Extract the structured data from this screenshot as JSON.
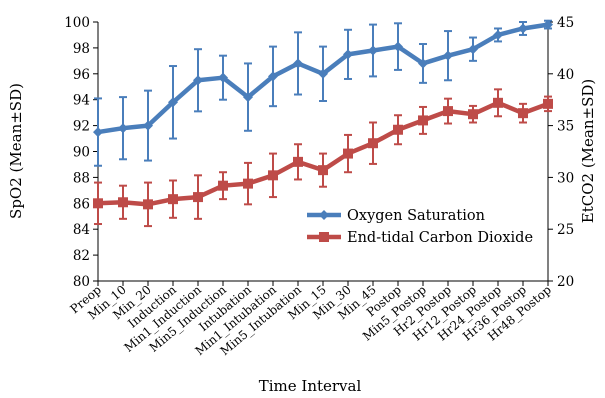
{
  "chart_data": {
    "type": "line",
    "xlabel": "Time Interval",
    "ylabel_left": "SpO2  (Mean±SD)",
    "ylabel_right": "EtCO2  (Mean±SD)",
    "ylim_left": [
      80,
      100
    ],
    "ylim_right": [
      20,
      45
    ],
    "yticks_left": [
      "80",
      "82",
      "84",
      "86",
      "88",
      "90",
      "92",
      "94",
      "96",
      "98",
      "100"
    ],
    "yticks_right": [
      "20",
      "25",
      "30",
      "35",
      "40",
      "45"
    ],
    "grid": false,
    "legend_position": "right-middle",
    "categories": [
      "Preop",
      "Min_10",
      "Min_20",
      "Induction",
      "Min1_Induction",
      "Min5_Induction",
      "Intubation",
      "Min1_Intubation",
      "Min5_Intubation",
      "Min_15",
      "Min_30",
      "Min_45",
      "Postop",
      "Min5_Postop",
      "Hr2_Postop",
      "Hr12_Postop",
      "Hr24_Postop",
      "Hr36_Postop",
      "Hr48_Postop"
    ],
    "series": [
      {
        "name": "Oxygen Saturation",
        "axis": "left",
        "color": "#4a7ebb",
        "marker": "diamond",
        "values": [
          91.5,
          91.8,
          92.0,
          93.8,
          95.5,
          95.7,
          94.2,
          95.8,
          96.8,
          96.0,
          97.5,
          97.8,
          98.1,
          96.8,
          97.4,
          97.9,
          99.0,
          99.5,
          99.8
        ],
        "sd": [
          2.6,
          2.4,
          2.7,
          2.8,
          2.4,
          1.7,
          2.6,
          2.3,
          2.4,
          2.1,
          1.9,
          2.0,
          1.8,
          1.5,
          1.9,
          0.9,
          0.5,
          0.5,
          0.3
        ]
      },
      {
        "name": "End-tidal Carbon Dioxide",
        "axis": "right",
        "color": "#be4b48",
        "marker": "square",
        "values": [
          27.5,
          27.6,
          27.4,
          27.9,
          28.1,
          29.2,
          29.4,
          30.2,
          31.5,
          30.7,
          32.3,
          33.3,
          34.6,
          35.5,
          36.4,
          36.1,
          37.2,
          36.2,
          37.1
        ],
        "sd": [
          2.0,
          1.6,
          2.1,
          1.8,
          2.1,
          1.3,
          2.0,
          2.1,
          1.7,
          1.6,
          1.8,
          2.0,
          1.4,
          1.3,
          1.2,
          0.8,
          1.3,
          0.9,
          0.7
        ]
      }
    ]
  }
}
